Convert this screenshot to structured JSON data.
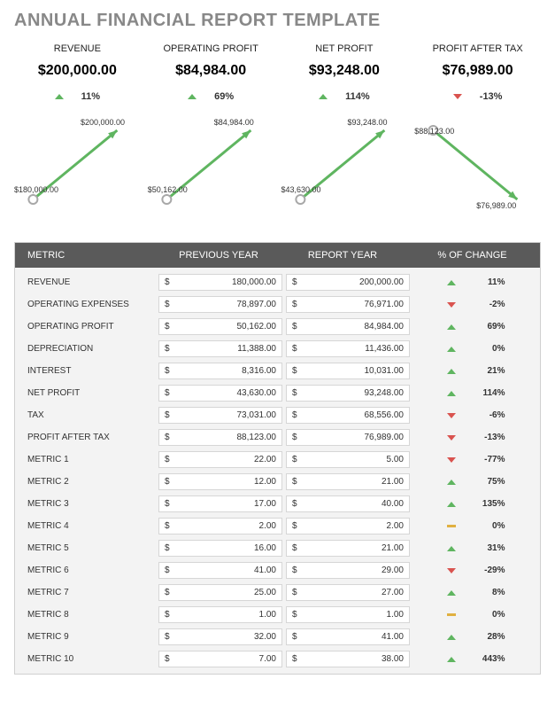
{
  "title": "ANNUAL FINANCIAL REPORT TEMPLATE",
  "colors": {
    "title": "#888888",
    "header_bg": "#5a5a5a",
    "header_text": "#ffffff",
    "body_bg": "#f3f3f3",
    "cell_bg": "#ffffff",
    "cell_border": "#d6d6d6",
    "up": "#5fb560",
    "down": "#d9534f",
    "flat": "#e0b040",
    "spark_line": "#5fb560",
    "spark_point": "#a8a8a8"
  },
  "kpis": [
    {
      "label": "REVENUE",
      "value": "$200,000.00",
      "change": "11%",
      "dir": "up",
      "spark": {
        "start_label": "$180,000.00",
        "end_label": "$200,000.00",
        "trend": "up",
        "start_pos": "bl",
        "end_pos": "tr"
      }
    },
    {
      "label": "OPERATING PROFIT",
      "value": "$84,984.00",
      "change": "69%",
      "dir": "up",
      "spark": {
        "start_label": "$50,162.00",
        "end_label": "$84,984.00",
        "trend": "up",
        "start_pos": "bl",
        "end_pos": "tr"
      }
    },
    {
      "label": "NET PROFIT",
      "value": "$93,248.00",
      "change": "114%",
      "dir": "up",
      "spark": {
        "start_label": "$43,630.00",
        "end_label": "$93,248.00",
        "trend": "up",
        "start_pos": "bl",
        "end_pos": "tr"
      }
    },
    {
      "label": "PROFIT AFTER TAX",
      "value": "$76,989.00",
      "change": "-13%",
      "dir": "down",
      "spark": {
        "start_label": "$88,123.00",
        "end_label": "$76,989.00",
        "trend": "down",
        "start_pos": "tl",
        "end_pos": "br"
      }
    }
  ],
  "table": {
    "headers": {
      "metric": "METRIC",
      "prev": "PREVIOUS YEAR",
      "curr": "REPORT YEAR",
      "chg": "% OF CHANGE"
    },
    "currency": "$",
    "rows": [
      {
        "metric": "REVENUE",
        "prev": "180,000.00",
        "curr": "200,000.00",
        "pct": "11%",
        "dir": "up"
      },
      {
        "metric": "OPERATING EXPENSES",
        "prev": "78,897.00",
        "curr": "76,971.00",
        "pct": "-2%",
        "dir": "down"
      },
      {
        "metric": "OPERATING PROFIT",
        "prev": "50,162.00",
        "curr": "84,984.00",
        "pct": "69%",
        "dir": "up"
      },
      {
        "metric": "DEPRECIATION",
        "prev": "11,388.00",
        "curr": "11,436.00",
        "pct": "0%",
        "dir": "up"
      },
      {
        "metric": "INTEREST",
        "prev": "8,316.00",
        "curr": "10,031.00",
        "pct": "21%",
        "dir": "up"
      },
      {
        "metric": "NET PROFIT",
        "prev": "43,630.00",
        "curr": "93,248.00",
        "pct": "114%",
        "dir": "up"
      },
      {
        "metric": "TAX",
        "prev": "73,031.00",
        "curr": "68,556.00",
        "pct": "-6%",
        "dir": "down"
      },
      {
        "metric": "PROFIT AFTER TAX",
        "prev": "88,123.00",
        "curr": "76,989.00",
        "pct": "-13%",
        "dir": "down"
      },
      {
        "metric": "METRIC 1",
        "prev": "22.00",
        "curr": "5.00",
        "pct": "-77%",
        "dir": "down"
      },
      {
        "metric": "METRIC 2",
        "prev": "12.00",
        "curr": "21.00",
        "pct": "75%",
        "dir": "up"
      },
      {
        "metric": "METRIC 3",
        "prev": "17.00",
        "curr": "40.00",
        "pct": "135%",
        "dir": "up"
      },
      {
        "metric": "METRIC 4",
        "prev": "2.00",
        "curr": "2.00",
        "pct": "0%",
        "dir": "flat"
      },
      {
        "metric": "METRIC 5",
        "prev": "16.00",
        "curr": "21.00",
        "pct": "31%",
        "dir": "up"
      },
      {
        "metric": "METRIC 6",
        "prev": "41.00",
        "curr": "29.00",
        "pct": "-29%",
        "dir": "down"
      },
      {
        "metric": "METRIC 7",
        "prev": "25.00",
        "curr": "27.00",
        "pct": "8%",
        "dir": "up"
      },
      {
        "metric": "METRIC 8",
        "prev": "1.00",
        "curr": "1.00",
        "pct": "0%",
        "dir": "flat"
      },
      {
        "metric": "METRIC 9",
        "prev": "32.00",
        "curr": "41.00",
        "pct": "28%",
        "dir": "up"
      },
      {
        "metric": "METRIC 10",
        "prev": "7.00",
        "curr": "38.00",
        "pct": "443%",
        "dir": "up"
      }
    ]
  }
}
